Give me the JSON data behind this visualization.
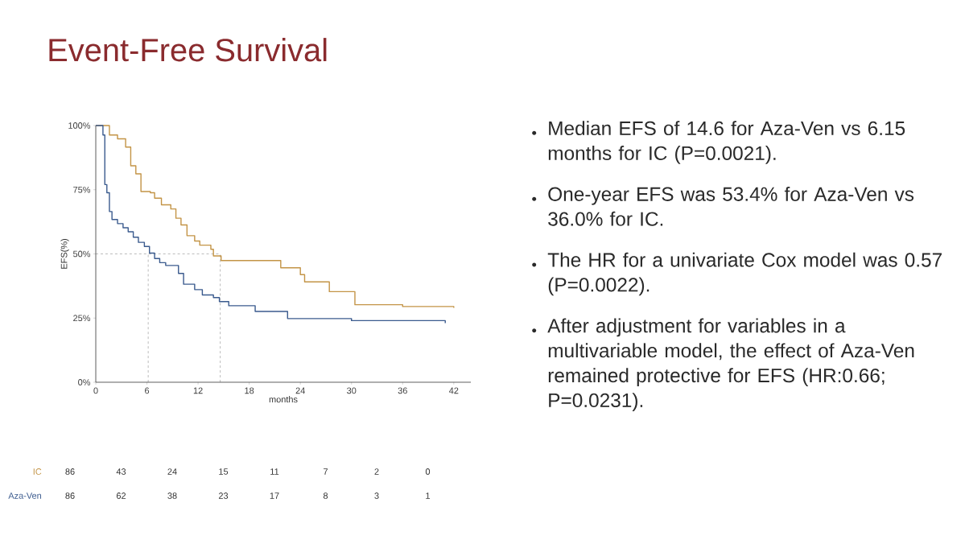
{
  "chart_data": [
    {
      "type": "step",
      "title": "Event-Free Survival",
      "xlabel": "months",
      "ylabel": "EFS(%)",
      "xlim": [
        0,
        44
      ],
      "ylim": [
        0,
        100
      ],
      "xticks": [
        0,
        6,
        12,
        18,
        24,
        30,
        36,
        42
      ],
      "yticks": [
        {
          "value": 0,
          "label": "0%"
        },
        {
          "value": 25,
          "label": "25%"
        },
        {
          "value": 50,
          "label": "50%"
        },
        {
          "value": 75,
          "label": "75%"
        },
        {
          "value": 100,
          "label": "100%"
        }
      ],
      "series": [
        {
          "color": "#c39446",
          "x": [
            0,
            1.6,
            2.55,
            3.5,
            4.1,
            4.7,
            5.3,
            6.4,
            6.9,
            7.7,
            8.8,
            9.4,
            10.0,
            10.7,
            11.6,
            12.2,
            13.5,
            13.8,
            14.7,
            21.7,
            24.0,
            24.5,
            27.4,
            30.4,
            36,
            42
          ],
          "values": [
            100,
            96.3,
            94.8,
            91.6,
            84.3,
            81.2,
            74.3,
            73.8,
            71.7,
            69.1,
            67.5,
            63.9,
            61.3,
            57.1,
            55,
            53.4,
            51.8,
            49.2,
            47.4,
            44.6,
            41.9,
            39.1,
            35.3,
            30.2,
            29.5,
            29
          ]
        },
        {
          "color": "#3b5b8e",
          "x": [
            0,
            0.84,
            1.06,
            1.3,
            1.6,
            1.9,
            2.55,
            3.2,
            3.8,
            4.4,
            5.0,
            5.7,
            6.3,
            6.9,
            7.5,
            8.2,
            9.7,
            10.3,
            11.6,
            12.5,
            13.8,
            14.5,
            15.6,
            18.7,
            22.5,
            30,
            41
          ],
          "values": [
            100,
            96.3,
            77,
            73.8,
            66.5,
            63.4,
            61.8,
            60.2,
            58.6,
            56.5,
            54.5,
            52.9,
            50.3,
            48.2,
            46.6,
            45.5,
            42.4,
            38.2,
            36.1,
            34,
            33,
            31.4,
            29.8,
            27.6,
            24.8,
            24,
            23
          ]
        }
      ],
      "ref_lines": [
        {
          "axis": "y",
          "value": 50,
          "color": "#555555",
          "line_style": "dashed"
        },
        {
          "axis": "x",
          "value": 6.15,
          "color": "#555555",
          "line_style": "dashed"
        },
        {
          "axis": "x",
          "value": 14.6,
          "color": "#555555",
          "line_style": "dashed"
        }
      ],
      "annotations": [
        "Median EFS of 14.6 for Aza-Ven vs 6.15 months for IC (P=0.0021).",
        "One-year EFS was 53.4% for Aza-Ven vs 36.0% for IC.",
        "The HR for a univariate Cox model was 0.57 (P=0.0022).",
        "After adjustment for variables in a multivariable model, the effect of Aza-Ven remained protective for EFS (HR:0.66; P=0.0231)."
      ]
    },
    {
      "type": "other",
      "annotations": [
        "IC",
        "86",
        "43",
        "24",
        "15",
        "11",
        "7",
        "2",
        "0",
        "Aza-Ven",
        "86",
        "62",
        "38",
        "23",
        "17",
        "8",
        "3",
        "1"
      ]
    }
  ]
}
